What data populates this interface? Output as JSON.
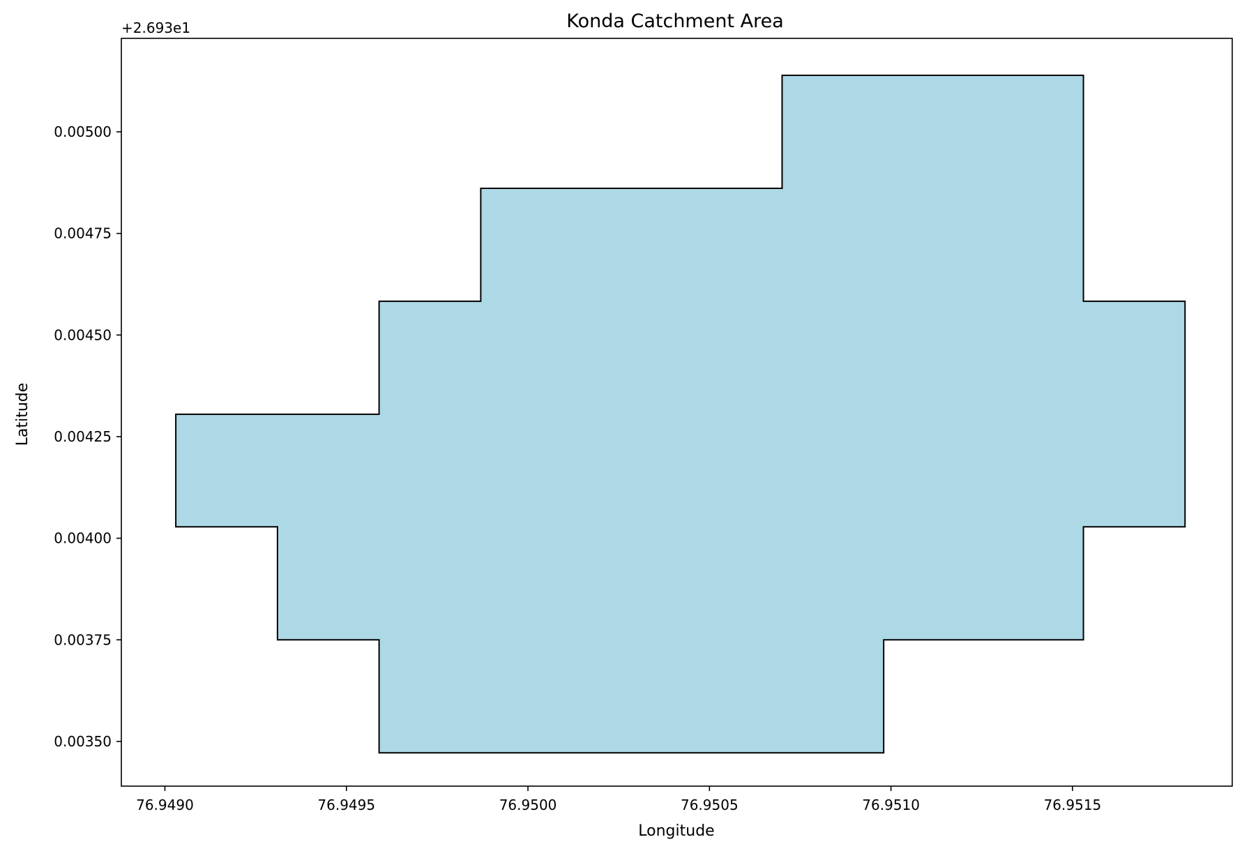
{
  "chart_data": {
    "type": "area",
    "title": "Konda Catchment Area",
    "xlabel": "Longitude",
    "ylabel": "Latitude",
    "y_offset_label": "+2.693e1",
    "y_offset": 26.93,
    "xlim": [
      76.94888,
      76.95194
    ],
    "ylim": [
      0.00339,
      0.00523
    ],
    "xticks": [
      {
        "value": 76.949,
        "label": "76.9490"
      },
      {
        "value": 76.9495,
        "label": "76.9495"
      },
      {
        "value": 76.95,
        "label": "76.9500"
      },
      {
        "value": 76.9505,
        "label": "76.9505"
      },
      {
        "value": 76.951,
        "label": "76.9510"
      },
      {
        "value": 76.9515,
        "label": "76.9515"
      }
    ],
    "yticks": [
      {
        "value": 0.0035,
        "label": "0.00350"
      },
      {
        "value": 0.00375,
        "label": "0.00375"
      },
      {
        "value": 0.004,
        "label": "0.00400"
      },
      {
        "value": 0.00425,
        "label": "0.00425"
      },
      {
        "value": 0.0045,
        "label": "0.00450"
      },
      {
        "value": 0.00475,
        "label": "0.00475"
      },
      {
        "value": 0.005,
        "label": "0.00500"
      }
    ],
    "grid": false,
    "fill_color": "#add8e6",
    "edge_color": "#000000",
    "polygon": [
      {
        "x": 76.94903,
        "y": 0.004305
      },
      {
        "x": 76.94959,
        "y": 0.004305
      },
      {
        "x": 76.94959,
        "y": 0.004583
      },
      {
        "x": 76.94987,
        "y": 0.004583
      },
      {
        "x": 76.94987,
        "y": 0.004861
      },
      {
        "x": 76.9507,
        "y": 0.004861
      },
      {
        "x": 76.9507,
        "y": 0.005139
      },
      {
        "x": 76.95153,
        "y": 0.005139
      },
      {
        "x": 76.95153,
        "y": 0.004583
      },
      {
        "x": 76.95181,
        "y": 0.004583
      },
      {
        "x": 76.95181,
        "y": 0.004028
      },
      {
        "x": 76.95153,
        "y": 0.004028
      },
      {
        "x": 76.95153,
        "y": 0.00375
      },
      {
        "x": 76.95098,
        "y": 0.00375
      },
      {
        "x": 76.95098,
        "y": 0.003472
      },
      {
        "x": 76.94959,
        "y": 0.003472
      },
      {
        "x": 76.94959,
        "y": 0.00375
      },
      {
        "x": 76.94931,
        "y": 0.00375
      },
      {
        "x": 76.94931,
        "y": 0.004028
      },
      {
        "x": 76.94903,
        "y": 0.004028
      }
    ]
  }
}
